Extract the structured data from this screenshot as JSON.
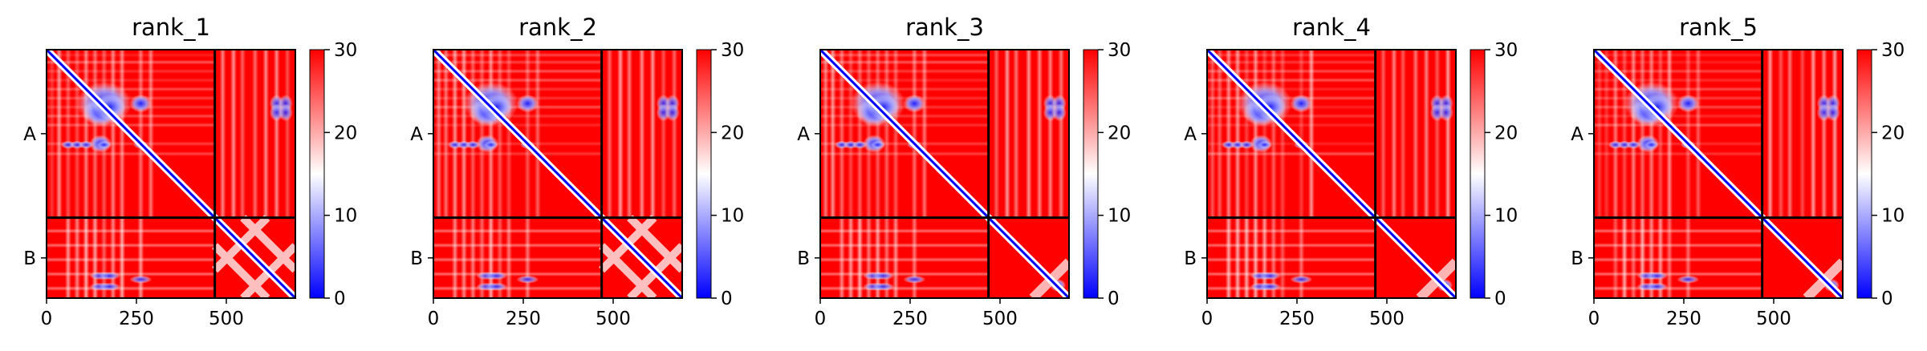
{
  "chart_data": [
    {
      "type": "heatmap",
      "title": "rank_1",
      "chains": [
        {
          "label": "A",
          "length": 468
        },
        {
          "label": "B",
          "length": 224
        }
      ],
      "x_ticks": [
        0,
        250,
        500
      ],
      "y_tick_labels": [
        "A",
        "B"
      ],
      "xlim": [
        0,
        692
      ],
      "colorbar": {
        "min": 0,
        "max": 30,
        "ticks": [
          0,
          10,
          20,
          30
        ],
        "colormap": "bwr"
      },
      "interchain_pae_level": "low"
    },
    {
      "type": "heatmap",
      "title": "rank_2",
      "chains": [
        {
          "label": "A",
          "length": 468
        },
        {
          "label": "B",
          "length": 224
        }
      ],
      "x_ticks": [
        0,
        250,
        500
      ],
      "y_tick_labels": [
        "A",
        "B"
      ],
      "xlim": [
        0,
        692
      ],
      "colorbar": {
        "min": 0,
        "max": 30,
        "ticks": [
          0,
          10,
          20,
          30
        ],
        "colormap": "bwr"
      },
      "interchain_pae_level": "low"
    },
    {
      "type": "heatmap",
      "title": "rank_3",
      "chains": [
        {
          "label": "A",
          "length": 468
        },
        {
          "label": "B",
          "length": 224
        }
      ],
      "x_ticks": [
        0,
        250,
        500
      ],
      "y_tick_labels": [
        "A",
        "B"
      ],
      "xlim": [
        0,
        692
      ],
      "colorbar": {
        "min": 0,
        "max": 30,
        "ticks": [
          0,
          10,
          20,
          30
        ],
        "colormap": "bwr"
      },
      "interchain_pae_level": "high"
    },
    {
      "type": "heatmap",
      "title": "rank_4",
      "chains": [
        {
          "label": "A",
          "length": 468
        },
        {
          "label": "B",
          "length": 224
        }
      ],
      "x_ticks": [
        0,
        250,
        500
      ],
      "y_tick_labels": [
        "A",
        "B"
      ],
      "xlim": [
        0,
        692
      ],
      "colorbar": {
        "min": 0,
        "max": 30,
        "ticks": [
          0,
          10,
          20,
          30
        ],
        "colormap": "bwr"
      },
      "interchain_pae_level": "high"
    },
    {
      "type": "heatmap",
      "title": "rank_5",
      "chains": [
        {
          "label": "A",
          "length": 468
        },
        {
          "label": "B",
          "length": 224
        }
      ],
      "x_ticks": [
        0,
        250,
        500
      ],
      "y_tick_labels": [
        "A",
        "B"
      ],
      "xlim": [
        0,
        692
      ],
      "colorbar": {
        "min": 0,
        "max": 30,
        "ticks": [
          0,
          10,
          20,
          30
        ],
        "colormap": "bwr"
      },
      "interchain_pae_level": "high"
    }
  ]
}
